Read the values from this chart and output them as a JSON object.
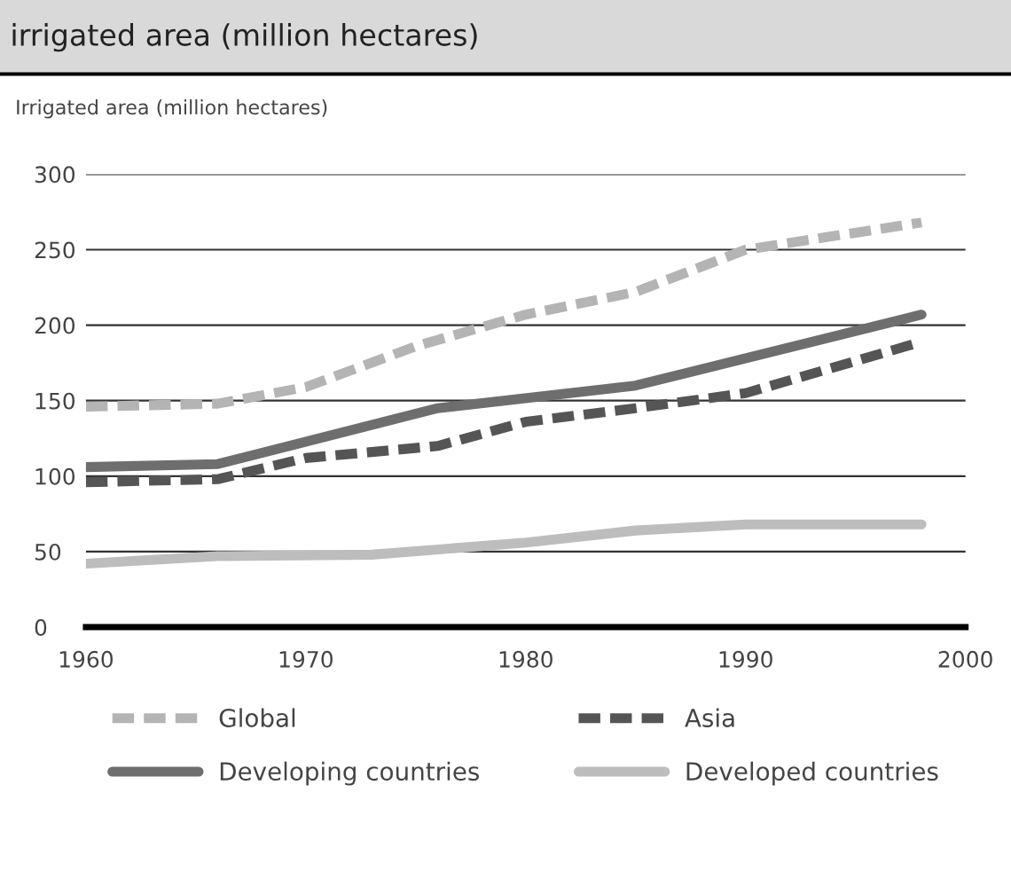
{
  "chart_data": {
    "type": "line",
    "title": "irrigated area (million hectares)",
    "ylabel": "Irrigated area (million hectares)",
    "xlim": [
      1960,
      2000
    ],
    "xticks": [
      1960,
      1970,
      1980,
      1990,
      2000
    ],
    "ylim": [
      0,
      300
    ],
    "yticks": [
      0,
      50,
      100,
      150,
      200,
      250,
      300
    ],
    "grid": "y",
    "legend": "bottom",
    "marker": "none",
    "series": [
      {
        "name": "Global",
        "color": "#b4b4b4",
        "line_style": "dashed",
        "x": [
          1960,
          1966,
          1970,
          1975,
          1980,
          1985,
          1990,
          1998
        ],
        "values": [
          146,
          148,
          159,
          186,
          207,
          222,
          250,
          268
        ]
      },
      {
        "name": "Asia",
        "color": "#555555",
        "line_style": "dashed",
        "x": [
          1960,
          1966,
          1970,
          1976,
          1980,
          1985,
          1990,
          1998
        ],
        "values": [
          96,
          98,
          112,
          120,
          136,
          145,
          155,
          189
        ]
      },
      {
        "name": "Developing countries",
        "color": "#6e6e6e",
        "line_style": "solid",
        "x": [
          1960,
          1966,
          1976,
          1985,
          1998
        ],
        "values": [
          106,
          108,
          145,
          160,
          207
        ]
      },
      {
        "name": "Developed countries",
        "color": "#bdbdbd",
        "line_style": "solid",
        "x": [
          1960,
          1966,
          1973,
          1980,
          1985,
          1990,
          1998
        ],
        "values": [
          42,
          47,
          48,
          56,
          64,
          68,
          68
        ]
      }
    ]
  }
}
